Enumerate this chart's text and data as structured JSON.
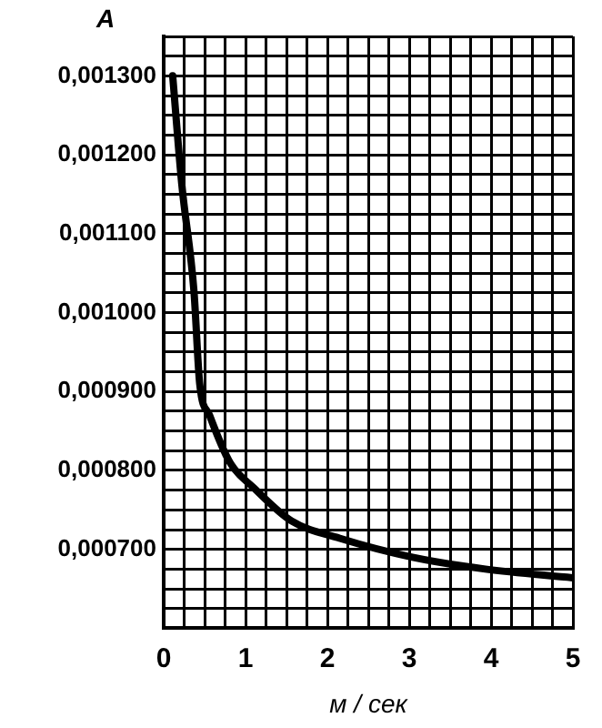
{
  "chart_data": {
    "type": "line",
    "ylabel": "A",
    "xlabel": "м / сек",
    "x": [
      0.11,
      0.22,
      0.37,
      0.44,
      0.56,
      0.81,
      1.11,
      1.56,
      2.15,
      3.04,
      3.93,
      5
    ],
    "series": [
      {
        "color": "#000000",
        "values": [
          0.0013,
          0.001164,
          0.001027,
          0.00091,
          0.00087,
          0.00081,
          0.000777,
          0.000736,
          0.000714,
          0.00069,
          0.000675,
          0.000664
        ]
      }
    ],
    "xlim": [
      0,
      5
    ],
    "xticks": [
      0,
      {
        "value": 0.25,
        "label": null
      },
      {
        "value": 0.5,
        "label": null
      },
      {
        "value": 0.75,
        "label": null
      },
      1,
      {
        "value": 1.25,
        "label": null
      },
      {
        "value": 1.5,
        "label": null
      },
      {
        "value": 1.75,
        "label": null
      },
      2,
      {
        "value": 2.25,
        "label": null
      },
      {
        "value": 2.5,
        "label": null
      },
      {
        "value": 2.75,
        "label": null
      },
      3,
      {
        "value": 3.25,
        "label": null
      },
      {
        "value": 3.5,
        "label": null
      },
      {
        "value": 3.75,
        "label": null
      },
      4,
      {
        "value": 4.25,
        "label": null
      },
      {
        "value": 4.5,
        "label": null
      },
      {
        "value": 4.75,
        "label": null
      },
      5
    ],
    "ylim": [
      0.0006,
      0.00135
    ],
    "yticks": [
      {
        "value": 0.0006,
        "label": null
      },
      {
        "value": 0.000625,
        "label": null
      },
      {
        "value": 0.00065,
        "label": null
      },
      {
        "value": 0.000675,
        "label": null
      },
      {
        "value": 0.0007,
        "label": "0,000700"
      },
      {
        "value": 0.000725,
        "label": null
      },
      {
        "value": 0.00075,
        "label": null
      },
      {
        "value": 0.000775,
        "label": null
      },
      {
        "value": 0.0008,
        "label": "0,000800"
      },
      {
        "value": 0.000825,
        "label": null
      },
      {
        "value": 0.00085,
        "label": null
      },
      {
        "value": 0.000875,
        "label": null
      },
      {
        "value": 0.0009,
        "label": "0,000900"
      },
      {
        "value": 0.000925,
        "label": null
      },
      {
        "value": 0.00095,
        "label": null
      },
      {
        "value": 0.000975,
        "label": null
      },
      {
        "value": 0.001,
        "label": "0,001000"
      },
      {
        "value": 0.001025,
        "label": null
      },
      {
        "value": 0.00105,
        "label": null
      },
      {
        "value": 0.001075,
        "label": null
      },
      {
        "value": 0.0011,
        "label": "0,001100"
      },
      {
        "value": 0.001125,
        "label": null
      },
      {
        "value": 0.00115,
        "label": null
      },
      {
        "value": 0.001175,
        "label": null
      },
      {
        "value": 0.0012,
        "label": "0,001200"
      },
      {
        "value": 0.001225,
        "label": null
      },
      {
        "value": 0.00125,
        "label": null
      },
      {
        "value": 0.001275,
        "label": null
      },
      {
        "value": 0.0013,
        "label": "0,001300"
      },
      {
        "value": 0.001325,
        "label": null
      },
      {
        "value": 0.00135,
        "label": null
      }
    ],
    "grid": true,
    "marker": "none",
    "line_style": "solid"
  }
}
